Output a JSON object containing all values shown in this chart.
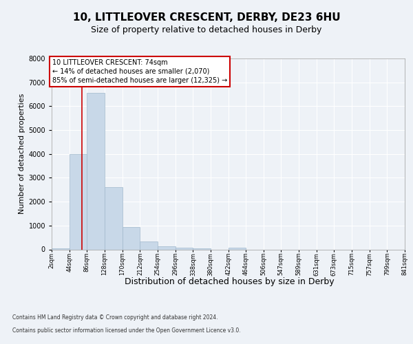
{
  "title1": "10, LITTLEOVER CRESCENT, DERBY, DE23 6HU",
  "title2": "Size of property relative to detached houses in Derby",
  "xlabel": "Distribution of detached houses by size in Derby",
  "ylabel": "Number of detached properties",
  "bin_edges": [
    2,
    44,
    86,
    128,
    170,
    212,
    254,
    296,
    338,
    380,
    422,
    464,
    506,
    547,
    589,
    631,
    673,
    715,
    757,
    799,
    841
  ],
  "bar_heights": [
    50,
    4000,
    6550,
    2600,
    950,
    320,
    130,
    80,
    50,
    0,
    80,
    0,
    0,
    0,
    0,
    0,
    0,
    0,
    0,
    0
  ],
  "bar_color": "#c8d8e8",
  "bar_edgecolor": "#a0b8cc",
  "property_size": 74,
  "vline_color": "#cc0000",
  "ylim": [
    0,
    8000
  ],
  "annotation_text": "10 LITTLEOVER CRESCENT: 74sqm\n← 14% of detached houses are smaller (2,070)\n85% of semi-detached houses are larger (12,325) →",
  "annotation_box_color": "#ffffff",
  "annotation_box_edgecolor": "#cc0000",
  "footer1": "Contains HM Land Registry data © Crown copyright and database right 2024.",
  "footer2": "Contains public sector information licensed under the Open Government Licence v3.0.",
  "bg_color": "#eef2f7",
  "plot_bg_color": "#eef2f7",
  "tick_labels": [
    "2sqm",
    "44sqm",
    "86sqm",
    "128sqm",
    "170sqm",
    "212sqm",
    "254sqm",
    "296sqm",
    "338sqm",
    "380sqm",
    "422sqm",
    "464sqm",
    "506sqm",
    "547sqm",
    "589sqm",
    "631sqm",
    "673sqm",
    "715sqm",
    "757sqm",
    "799sqm",
    "841sqm"
  ],
  "title1_fontsize": 11,
  "title2_fontsize": 9,
  "xlabel_fontsize": 9,
  "ylabel_fontsize": 8,
  "annot_fontsize": 7,
  "tick_fontsize": 6,
  "ytick_fontsize": 7,
  "footer_fontsize": 5.5
}
